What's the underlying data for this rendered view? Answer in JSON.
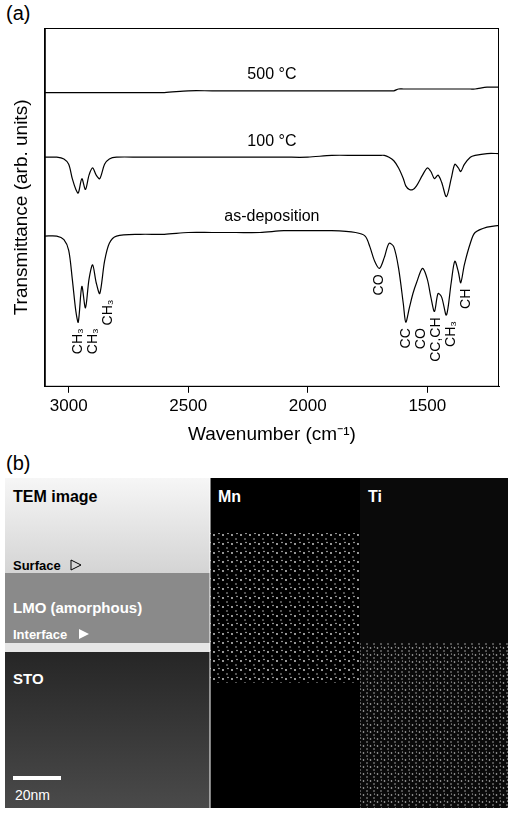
{
  "panel_a_label": "(a)",
  "chart_data": {
    "type": "line",
    "x_label": "Wavenumber (cm⁻¹)",
    "y_label": "Transmittance (arb. units)",
    "xlim": [
      3100,
      1200
    ],
    "xticks": [
      3000,
      2500,
      2000,
      1500
    ],
    "ylim": [
      0,
      10
    ],
    "tick_labels": "x",
    "grid": false,
    "x": [
      3100,
      3050,
      3020,
      3000,
      2985,
      2970,
      2960,
      2945,
      2930,
      2915,
      2900,
      2885,
      2870,
      2850,
      2830,
      2800,
      2700,
      2600,
      2500,
      2400,
      2300,
      2200,
      2100,
      2000,
      1900,
      1800,
      1760,
      1740,
      1720,
      1700,
      1680,
      1660,
      1640,
      1620,
      1600,
      1590,
      1575,
      1560,
      1545,
      1520,
      1500,
      1485,
      1470,
      1455,
      1440,
      1420,
      1400,
      1385,
      1370,
      1360,
      1345,
      1320,
      1300,
      1250,
      1200
    ],
    "series": [
      {
        "name": "500 °C",
        "color": "#000000",
        "values": [
          8.2,
          8.2,
          8.2,
          8.2,
          8.2,
          8.2,
          8.2,
          8.2,
          8.2,
          8.2,
          8.2,
          8.2,
          8.2,
          8.2,
          8.2,
          8.2,
          8.2,
          8.2,
          8.25,
          8.25,
          8.25,
          8.25,
          8.25,
          8.25,
          8.25,
          8.25,
          8.25,
          8.25,
          8.25,
          8.25,
          8.25,
          8.25,
          8.25,
          8.3,
          8.3,
          8.3,
          8.3,
          8.3,
          8.3,
          8.3,
          8.3,
          8.3,
          8.3,
          8.3,
          8.3,
          8.3,
          8.3,
          8.3,
          8.3,
          8.3,
          8.3,
          8.3,
          8.3,
          8.35,
          8.35
        ]
      },
      {
        "name": "100 °C",
        "color": "#000000",
        "values": [
          6.4,
          6.4,
          6.35,
          6.2,
          5.8,
          5.5,
          5.4,
          5.8,
          5.5,
          5.9,
          6.1,
          5.9,
          5.8,
          6.2,
          6.35,
          6.4,
          6.4,
          6.4,
          6.4,
          6.4,
          6.4,
          6.4,
          6.4,
          6.4,
          6.45,
          6.45,
          6.45,
          6.45,
          6.45,
          6.45,
          6.45,
          6.4,
          6.3,
          6.1,
          5.8,
          5.6,
          5.5,
          5.5,
          5.6,
          5.9,
          6.1,
          6.0,
          5.8,
          5.9,
          5.7,
          5.3,
          5.8,
          6.2,
          6.1,
          6.0,
          6.2,
          6.4,
          6.45,
          6.5,
          6.5
        ]
      },
      {
        "name": "as-deposition",
        "color": "#000000",
        "values": [
          4.2,
          4.2,
          4.1,
          3.8,
          3.0,
          2.1,
          1.8,
          2.8,
          2.2,
          3.0,
          3.4,
          2.9,
          2.6,
          3.5,
          4.0,
          4.2,
          4.25,
          4.25,
          4.3,
          4.3,
          4.3,
          4.3,
          4.35,
          4.35,
          4.35,
          4.3,
          4.2,
          3.9,
          3.5,
          3.3,
          3.6,
          4.0,
          3.9,
          3.3,
          2.3,
          1.8,
          2.2,
          2.6,
          2.9,
          3.3,
          3.0,
          2.5,
          2.1,
          2.6,
          2.5,
          2.0,
          2.9,
          3.5,
          3.2,
          2.9,
          3.4,
          4.0,
          4.3,
          4.45,
          4.5
        ]
      }
    ],
    "annotations": [
      {
        "text": "CH₃",
        "x": 2960
      },
      {
        "text": "CH₃",
        "x": 2930
      },
      {
        "text": "CH₃",
        "x": 2870
      },
      {
        "text": "CO",
        "x": 1700
      },
      {
        "text": "CC",
        "x": 1590
      },
      {
        "text": "CO",
        "x": 1560
      },
      {
        "text": "CC,CH",
        "x": 1470
      },
      {
        "text": "CH₃",
        "x": 1420
      },
      {
        "text": "CH",
        "x": 1360
      }
    ]
  },
  "panel_b": {
    "label": "(b)",
    "image_panels": [
      {
        "title": "TEM image",
        "annotations": [
          "Surface",
          "LMO (amorphous)",
          "Interface",
          "STO"
        ],
        "scale_bar": "20nm"
      },
      {
        "title": "Mn"
      },
      {
        "title": "Ti"
      }
    ]
  }
}
